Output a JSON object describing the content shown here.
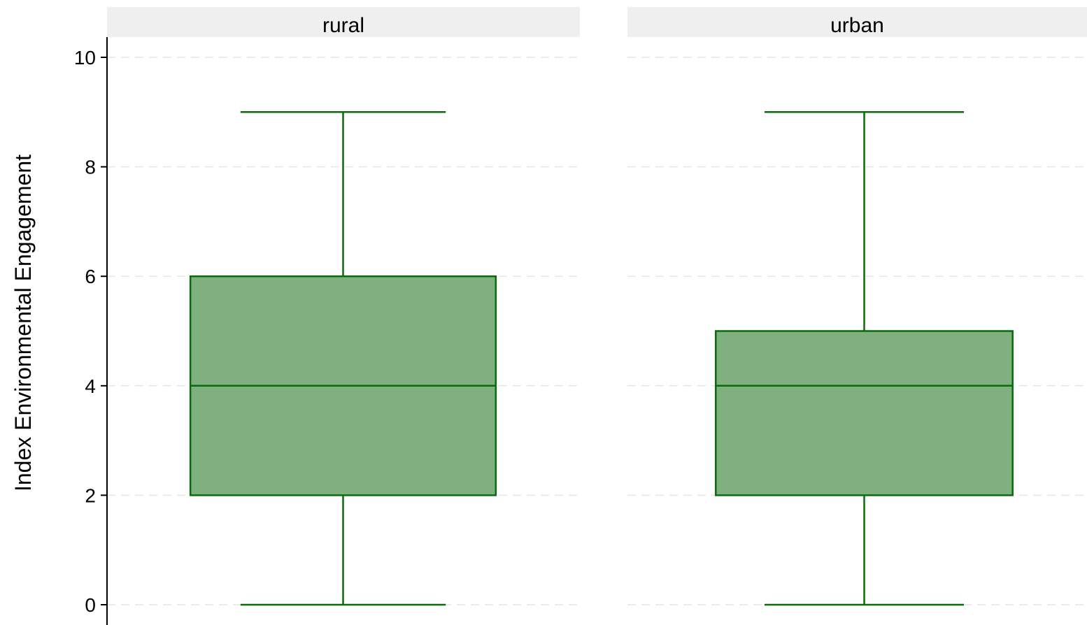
{
  "colors": {
    "box_fill": "#80af80",
    "box_stroke": "#0a6b0a",
    "strip_fill": "#efefef",
    "grid": "#e6e6e6"
  },
  "chart_data": {
    "type": "box",
    "title": "",
    "xlabel": "",
    "ylabel": "Index Environmental Engagement",
    "ylim": [
      0,
      10
    ],
    "yticks": [
      0,
      2,
      4,
      6,
      8,
      10
    ],
    "grid": true,
    "facets": [
      {
        "label": "rural",
        "box": {
          "min": 0,
          "q1": 2,
          "median": 4,
          "q3": 6,
          "max": 9
        }
      },
      {
        "label": "urban",
        "box": {
          "min": 0,
          "q1": 2,
          "median": 4,
          "q3": 5,
          "max": 9
        }
      }
    ]
  }
}
